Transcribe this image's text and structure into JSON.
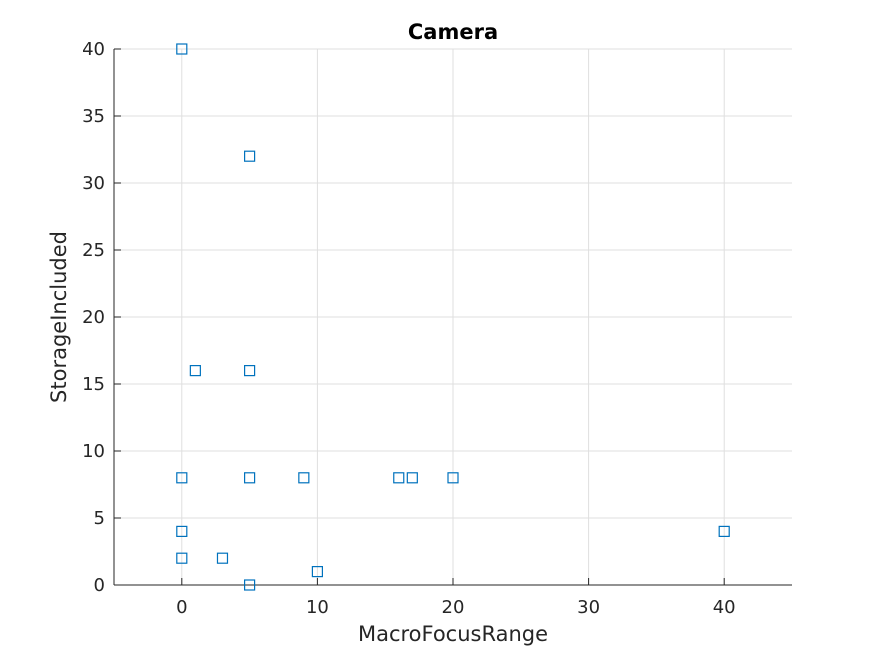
{
  "chart_data": {
    "type": "scatter",
    "title": "Camera",
    "xlabel": "MacroFocusRange",
    "ylabel": "StorageIncluded",
    "xlim": [
      -5,
      45
    ],
    "ylim": [
      0,
      40
    ],
    "xticks": [
      0,
      10,
      20,
      30,
      40
    ],
    "yticks": [
      0,
      5,
      10,
      15,
      20,
      25,
      30,
      35,
      40
    ],
    "grid": true,
    "marker": "square",
    "color": "#0072BD",
    "points": [
      {
        "x": 0,
        "y": 40
      },
      {
        "x": 5,
        "y": 32
      },
      {
        "x": 1,
        "y": 16
      },
      {
        "x": 5,
        "y": 16
      },
      {
        "x": 0,
        "y": 8
      },
      {
        "x": 5,
        "y": 8
      },
      {
        "x": 9,
        "y": 8
      },
      {
        "x": 16,
        "y": 8
      },
      {
        "x": 17,
        "y": 8
      },
      {
        "x": 20,
        "y": 8
      },
      {
        "x": 0,
        "y": 4
      },
      {
        "x": 40,
        "y": 4
      },
      {
        "x": 0,
        "y": 2
      },
      {
        "x": 3,
        "y": 2
      },
      {
        "x": 5,
        "y": 0
      },
      {
        "x": 10,
        "y": 1
      }
    ]
  }
}
